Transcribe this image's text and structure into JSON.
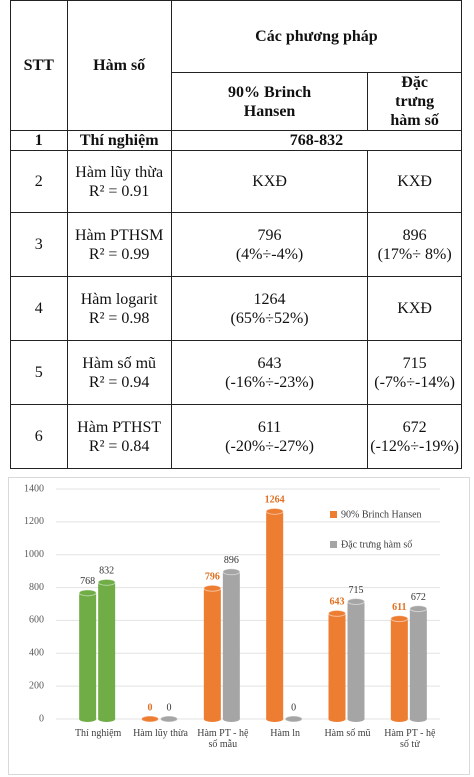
{
  "table": {
    "header": {
      "stt": "STT",
      "func": "Hàm số",
      "methods": "Các phương pháp",
      "m1": "90% Brinch Hansen",
      "m2": "Đặc trưng hàm số"
    },
    "first_row": {
      "stt": "1",
      "name": "Thí nghiệm",
      "result": "768-832"
    },
    "rows": [
      {
        "stt": "2",
        "name": "Hàm lũy thừa",
        "r2": "R² = 0.91",
        "m1": [
          "KXĐ"
        ],
        "m2": [
          "KXĐ"
        ]
      },
      {
        "stt": "3",
        "name": "Hàm PTHSM",
        "r2": "R² = 0.99",
        "m1": [
          "796",
          "(4%÷-4%)"
        ],
        "m2": [
          "896",
          "(17%÷ 8%)"
        ]
      },
      {
        "stt": "4",
        "name": "Hàm logarit",
        "r2": "R² = 0.98",
        "m1": [
          "1264",
          "(65%÷52%)"
        ],
        "m2": [
          "KXĐ"
        ]
      },
      {
        "stt": "5",
        "name": "Hàm số mũ",
        "r2": "R² = 0.94",
        "m1": [
          "643",
          "(-16%÷-23%)"
        ],
        "m2": [
          "715",
          "(-7%÷-14%)"
        ]
      },
      {
        "stt": "6",
        "name": "Hàm PTHST",
        "r2": "R² = 0.84",
        "m1": [
          "611",
          "(-20%÷-27%)"
        ],
        "m2": [
          "672",
          "(-12%÷-19%)"
        ]
      }
    ]
  },
  "chart_data": {
    "type": "bar",
    "categories": [
      "Thí nghiệm",
      "Hàm lũy thừa",
      "Hàm PT - hệ số mẫu",
      "Hàm ln",
      "Hàm số mũ",
      "Hàm PT - hệ số tử"
    ],
    "series": [
      {
        "name": "90% Brinch Hansen",
        "color": "#ed7d31",
        "colors": [
          "#70ad47",
          "#ed7d31",
          "#ed7d31",
          "#ed7d31",
          "#ed7d31",
          "#ed7d31"
        ],
        "values": [
          768,
          0,
          796,
          1264,
          643,
          611
        ]
      },
      {
        "name": "Đặc trưng hàm số",
        "color": "#a5a5a5",
        "colors": [
          "#70ad47",
          "#a5a5a5",
          "#a5a5a5",
          "#a5a5a5",
          "#a5a5a5",
          "#a5a5a5"
        ],
        "values": [
          832,
          0,
          896,
          0,
          715,
          672
        ]
      }
    ],
    "ylim": [
      0,
      1400
    ],
    "yticks": [
      0,
      200,
      400,
      600,
      800,
      1000,
      1200,
      1400
    ],
    "grid": true,
    "legend": "top-right"
  }
}
